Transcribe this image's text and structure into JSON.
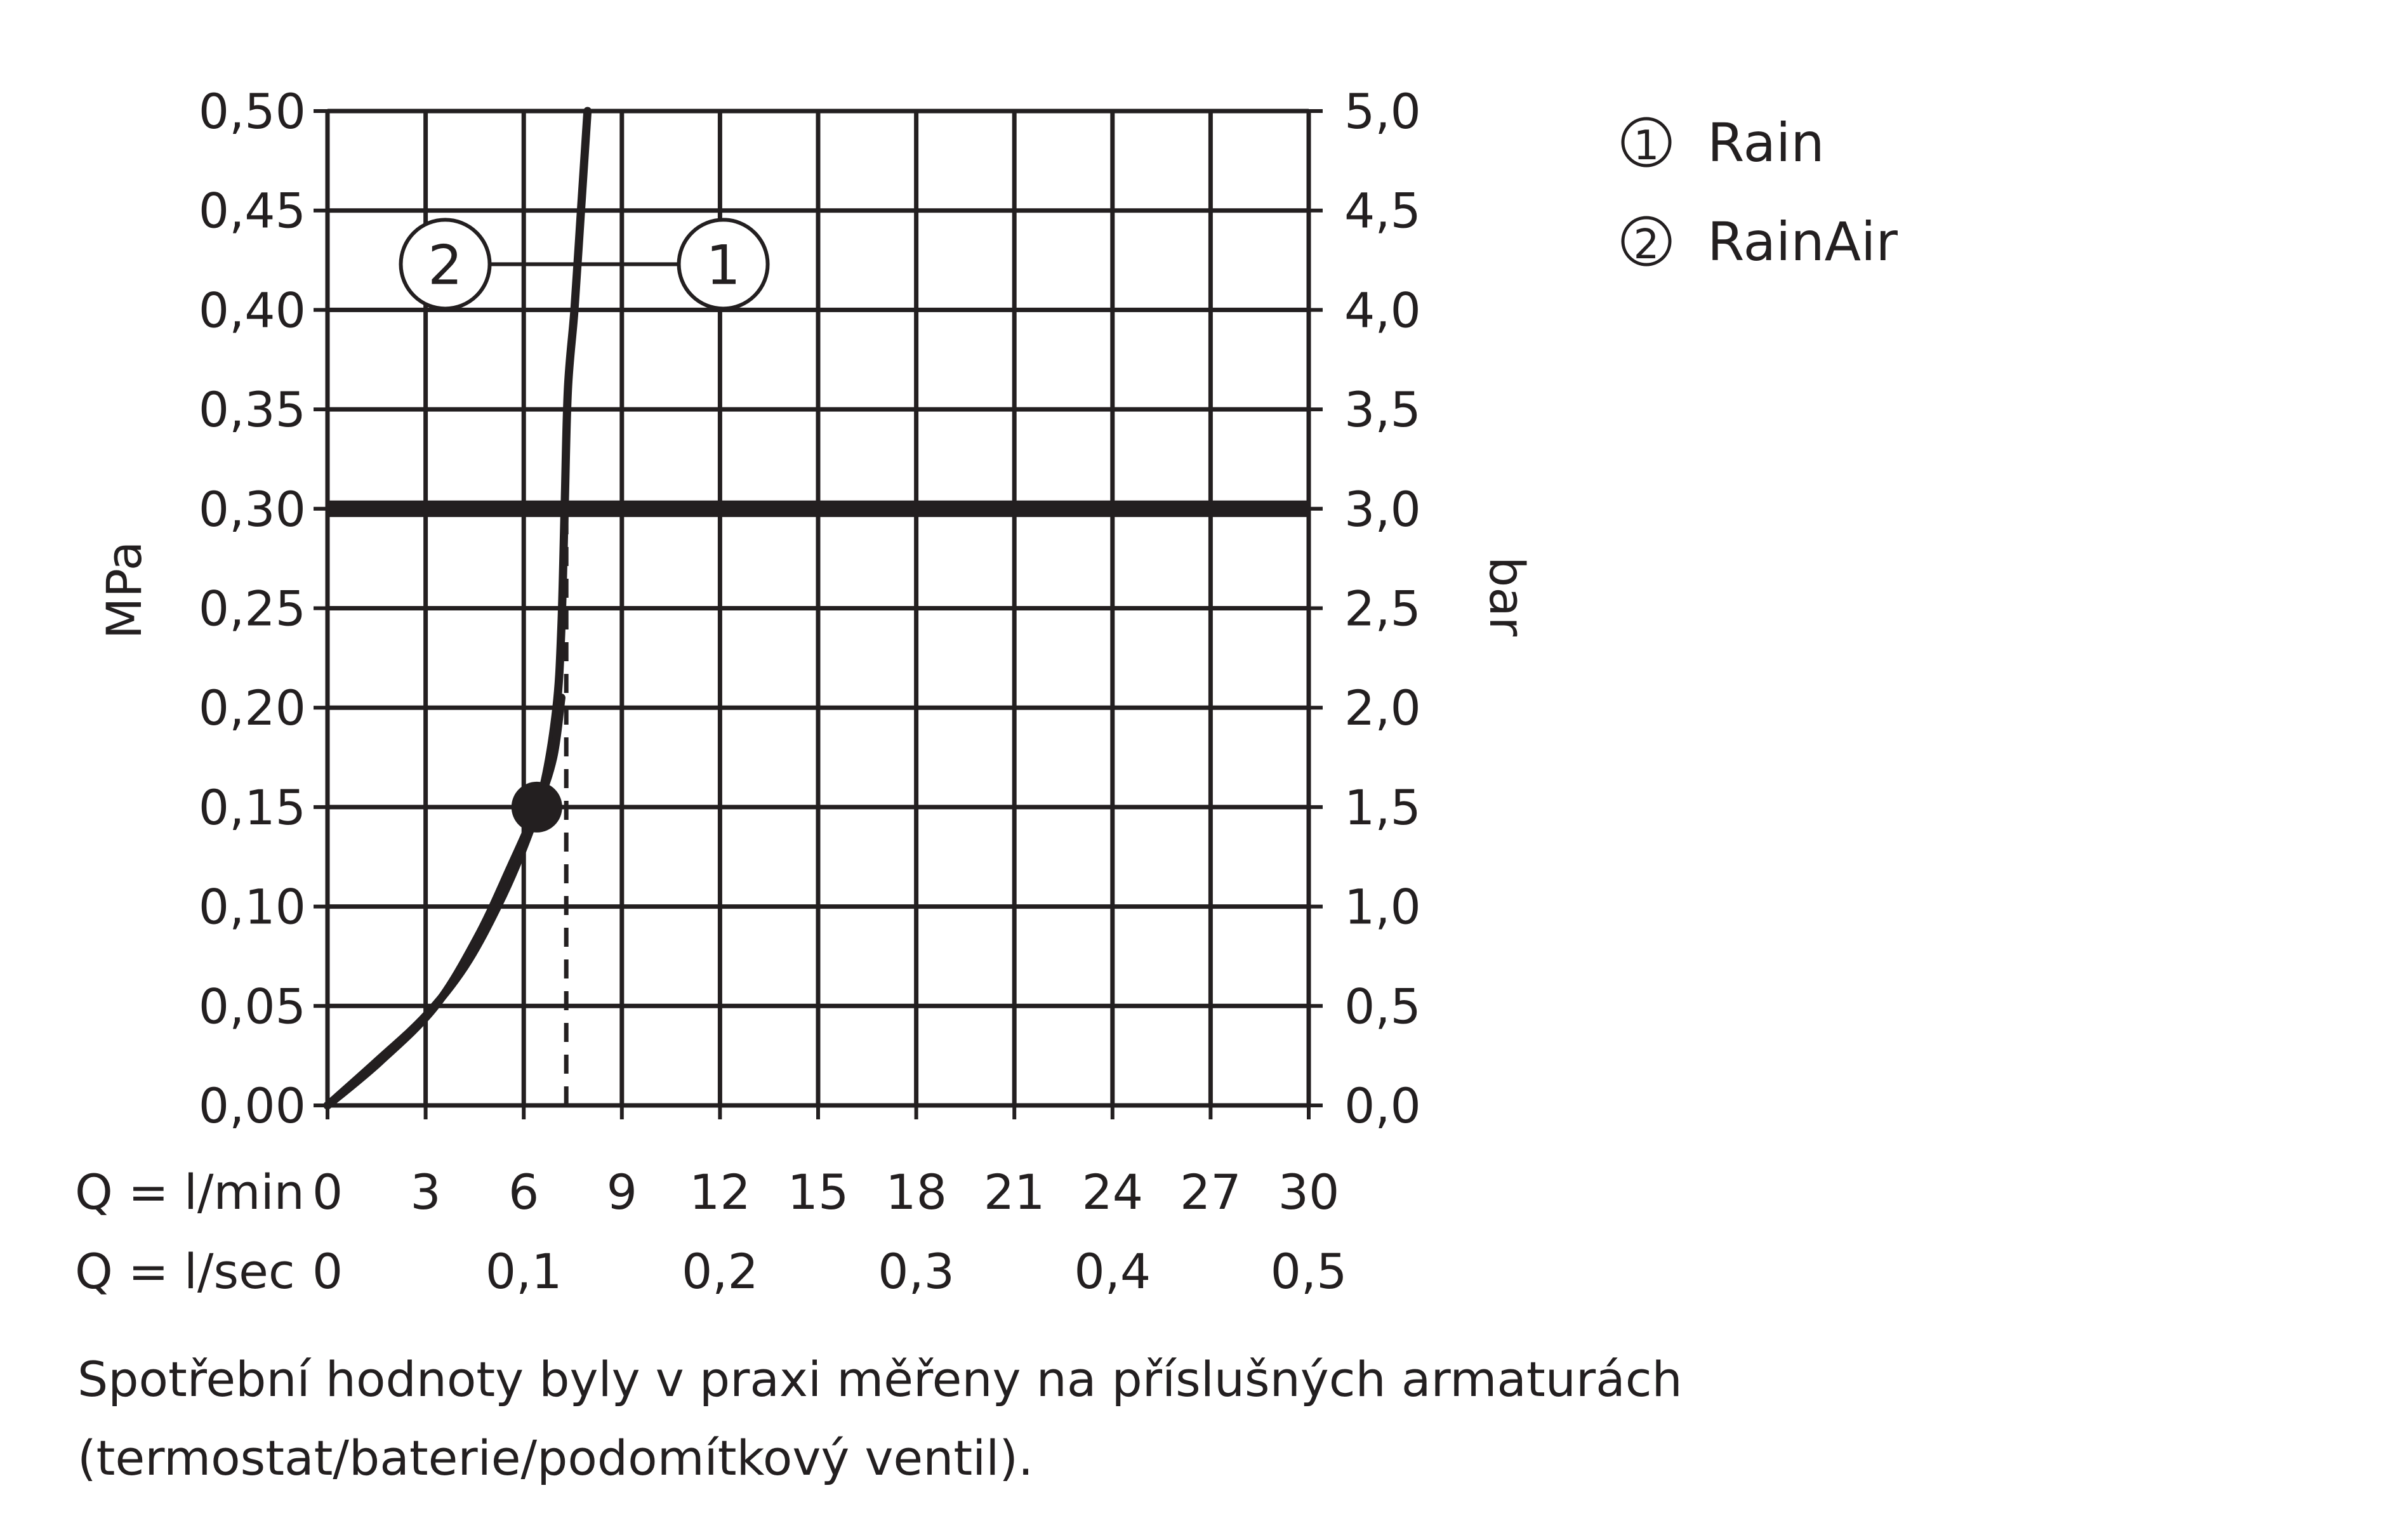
{
  "chart_data": {
    "type": "line",
    "axis_labels": {
      "y_left": "MPa",
      "y_right": "bar",
      "x_row1": "Q = l/min",
      "x_row2": "Q = l/sec"
    },
    "y_left_ticks": [
      "0,00",
      "0,05",
      "0,10",
      "0,15",
      "0,20",
      "0,25",
      "0,30",
      "0,35",
      "0,40",
      "0,45",
      "0,50"
    ],
    "y_right_ticks": [
      "0,0",
      "0,5",
      "1,0",
      "1,5",
      "2,0",
      "2,5",
      "3,0",
      "3,5",
      "4,0",
      "4,5",
      "5,0"
    ],
    "x_ticks_lmin": [
      "0",
      "3",
      "6",
      "9",
      "12",
      "15",
      "18",
      "21",
      "24",
      "27",
      "30"
    ],
    "x_ticks_lsec": [
      {
        "value": 0,
        "label": "0"
      },
      {
        "value": 6,
        "label": "0,1"
      },
      {
        "value": 12,
        "label": "0,2"
      },
      {
        "value": 18,
        "label": "0,3"
      },
      {
        "value": 24,
        "label": "0,4"
      },
      {
        "value": 30,
        "label": "0,5"
      }
    ],
    "xlim": [
      0,
      30
    ],
    "ylim": [
      0,
      0.5
    ],
    "y_tick_values": [
      0,
      0.05,
      0.1,
      0.15,
      0.2,
      0.25,
      0.3,
      0.35,
      0.4,
      0.45,
      0.5
    ],
    "x_tick_values": [
      0,
      3,
      6,
      9,
      12,
      15,
      18,
      21,
      24,
      27,
      30
    ],
    "grid": true,
    "reference_line": {
      "y": 0.3
    },
    "marker": {
      "x": 6.4,
      "y": 0.15
    },
    "dashed_guide": {
      "x": 7.3,
      "y_from": 0,
      "y_to": 0.3
    },
    "series": [
      {
        "id": "1",
        "x": [
          0,
          1.5,
          3.0,
          4.2,
          5.2,
          6.0,
          6.6,
          7.0,
          7.15,
          7.25,
          7.35,
          7.55,
          7.75,
          7.95
        ],
        "y": [
          0,
          0.022,
          0.045,
          0.07,
          0.1,
          0.13,
          0.16,
          0.2,
          0.24,
          0.3,
          0.36,
          0.4,
          0.45,
          0.5
        ]
      },
      {
        "id": "2",
        "x": [
          0,
          1.6,
          3.3,
          4.6,
          5.6,
          6.4,
          6.9,
          7.15
        ],
        "y": [
          0,
          0.022,
          0.05,
          0.085,
          0.12,
          0.15,
          0.175,
          0.205
        ]
      }
    ],
    "callouts": [
      {
        "text": "2",
        "x": 3.6,
        "y": 0.423
      },
      {
        "text": "1",
        "x": 12.1,
        "y": 0.423
      }
    ],
    "legend": {
      "placement": "top-right",
      "entries": [
        {
          "marker": "1",
          "label": "Rain"
        },
        {
          "marker": "2",
          "label": "RainAir"
        }
      ]
    }
  },
  "caption": "Spotřební hodnoty byly v praxi měřeny na příslušných armaturách (termostat/baterie/podomítkový ventil)."
}
